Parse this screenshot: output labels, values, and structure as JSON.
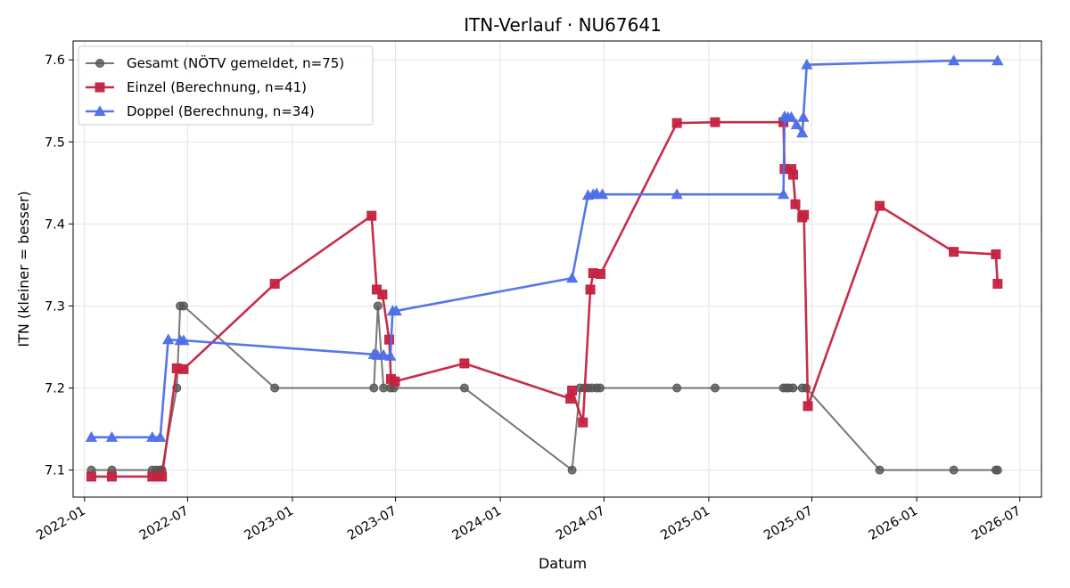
{
  "chart_data": {
    "type": "line",
    "title": "ITN-Verlauf · NU67641",
    "xlabel": "Datum",
    "ylabel": "ITN  (kleiner = besser)",
    "x_type": "date",
    "xlim": [
      "2021-12-12",
      "2026-08-08"
    ],
    "ylim": [
      7.067,
      7.623
    ],
    "x_ticks": [
      "2022-01",
      "2022-07",
      "2023-01",
      "2023-07",
      "2024-01",
      "2024-07",
      "2025-01",
      "2025-07",
      "2026-01",
      "2026-07"
    ],
    "y_ticks": [
      "7.1",
      "7.2",
      "7.3",
      "7.4",
      "7.5",
      "7.6"
    ],
    "grid": true,
    "legend_position": "top-left",
    "series": [
      {
        "name": "Gesamt (NÖTV gemeldet, n=75)",
        "color": "#555555",
        "marker": "circle",
        "points": [
          [
            "2022-01-13",
            7.1
          ],
          [
            "2022-02-18",
            7.1
          ],
          [
            "2022-04-30",
            7.1
          ],
          [
            "2022-05-07",
            7.1
          ],
          [
            "2022-05-14",
            7.1
          ],
          [
            "2022-05-17",
            7.1
          ],
          [
            "2022-06-12",
            7.2
          ],
          [
            "2022-06-18",
            7.3
          ],
          [
            "2022-06-24",
            7.3
          ],
          [
            "2022-12-01",
            7.2
          ],
          [
            "2023-05-24",
            7.2
          ],
          [
            "2023-05-31",
            7.3
          ],
          [
            "2023-06-10",
            7.2
          ],
          [
            "2023-06-22",
            7.2
          ],
          [
            "2023-06-28",
            7.2
          ],
          [
            "2023-10-30",
            7.2
          ],
          [
            "2024-05-06",
            7.1
          ],
          [
            "2024-05-20",
            7.2
          ],
          [
            "2024-05-28",
            7.2
          ],
          [
            "2024-06-03",
            7.2
          ],
          [
            "2024-06-10",
            7.2
          ],
          [
            "2024-06-18",
            7.2
          ],
          [
            "2024-06-24",
            7.2
          ],
          [
            "2024-11-06",
            7.2
          ],
          [
            "2025-01-12",
            7.2
          ],
          [
            "2025-05-12",
            7.2
          ],
          [
            "2025-05-17",
            7.2
          ],
          [
            "2025-05-22",
            7.2
          ],
          [
            "2025-05-29",
            7.2
          ],
          [
            "2025-06-14",
            7.2
          ],
          [
            "2025-06-21",
            7.2
          ],
          [
            "2025-10-28",
            7.1
          ],
          [
            "2026-03-07",
            7.1
          ],
          [
            "2026-05-20",
            7.1
          ],
          [
            "2026-05-23",
            7.1
          ]
        ]
      },
      {
        "name": "Einzel (Berechnung, n=41)",
        "color": "#c4223f",
        "marker": "square",
        "points": [
          [
            "2022-01-13",
            7.092
          ],
          [
            "2022-02-18",
            7.092
          ],
          [
            "2022-04-30",
            7.092
          ],
          [
            "2022-05-10",
            7.092
          ],
          [
            "2022-05-17",
            7.092
          ],
          [
            "2022-06-12",
            7.224
          ],
          [
            "2022-06-24",
            7.223
          ],
          [
            "2022-12-01",
            7.327
          ],
          [
            "2023-05-20",
            7.41
          ],
          [
            "2023-05-29",
            7.32
          ],
          [
            "2023-06-08",
            7.314
          ],
          [
            "2023-06-20",
            7.259
          ],
          [
            "2023-06-23",
            7.211
          ],
          [
            "2023-06-30",
            7.208
          ],
          [
            "2023-10-30",
            7.23
          ],
          [
            "2024-05-03",
            7.187
          ],
          [
            "2024-05-06",
            7.197
          ],
          [
            "2024-05-25",
            7.158
          ],
          [
            "2024-06-07",
            7.32
          ],
          [
            "2024-06-12",
            7.34
          ],
          [
            "2024-06-25",
            7.339
          ],
          [
            "2024-11-06",
            7.523
          ],
          [
            "2025-01-12",
            7.524
          ],
          [
            "2025-05-12",
            7.524
          ],
          [
            "2025-05-14",
            7.467
          ],
          [
            "2025-05-26",
            7.467
          ],
          [
            "2025-05-29",
            7.46
          ],
          [
            "2025-06-02",
            7.424
          ],
          [
            "2025-06-14",
            7.408
          ],
          [
            "2025-06-17",
            7.411
          ],
          [
            "2025-06-24",
            7.178
          ],
          [
            "2025-10-28",
            7.422
          ],
          [
            "2026-03-07",
            7.366
          ],
          [
            "2026-05-20",
            7.363
          ],
          [
            "2026-05-23",
            7.327
          ]
        ]
      },
      {
        "name": "Doppel (Berechnung, n=34)",
        "color": "#4f6fe8",
        "marker": "triangle",
        "points": [
          [
            "2022-01-13",
            7.14
          ],
          [
            "2022-02-18",
            7.14
          ],
          [
            "2022-04-30",
            7.14
          ],
          [
            "2022-05-14",
            7.14
          ],
          [
            "2022-05-28",
            7.259
          ],
          [
            "2022-06-18",
            7.258
          ],
          [
            "2022-06-24",
            7.258
          ],
          [
            "2023-05-24",
            7.241
          ],
          [
            "2023-05-30",
            7.24
          ],
          [
            "2023-06-10",
            7.24
          ],
          [
            "2023-06-22",
            7.239
          ],
          [
            "2023-06-26",
            7.294
          ],
          [
            "2023-07-02",
            7.294
          ],
          [
            "2024-05-06",
            7.334
          ],
          [
            "2024-06-03",
            7.435
          ],
          [
            "2024-06-12",
            7.436
          ],
          [
            "2024-06-18",
            7.437
          ],
          [
            "2024-06-28",
            7.436
          ],
          [
            "2024-11-06",
            7.436
          ],
          [
            "2025-05-12",
            7.436
          ],
          [
            "2025-05-14",
            7.531
          ],
          [
            "2025-05-20",
            7.53
          ],
          [
            "2025-05-26",
            7.53
          ],
          [
            "2025-06-04",
            7.521
          ],
          [
            "2025-06-14",
            7.511
          ],
          [
            "2025-06-16",
            7.53
          ],
          [
            "2025-06-22",
            7.594
          ],
          [
            "2026-03-07",
            7.599
          ],
          [
            "2026-05-23",
            7.599
          ]
        ]
      }
    ]
  }
}
